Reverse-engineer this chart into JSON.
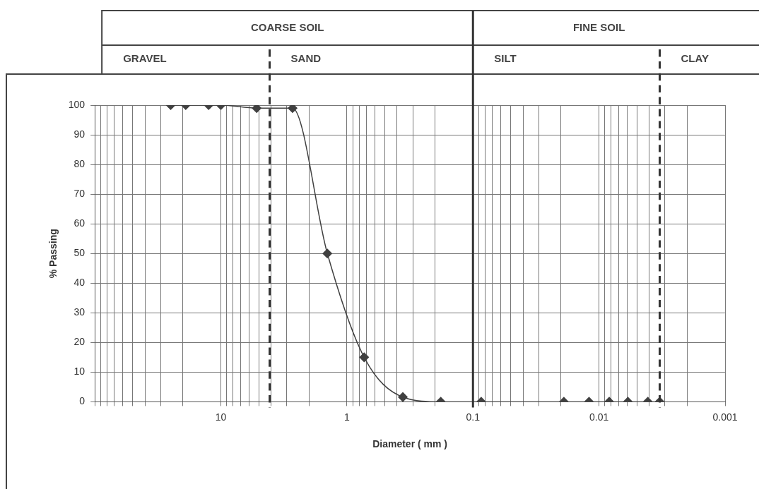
{
  "chart_data": {
    "type": "line",
    "xlabel": "Diameter ( mm )",
    "ylabel": "% Passing",
    "x": [
      25,
      19,
      12.5,
      10,
      5.2,
      2.7,
      1.43,
      0.73,
      0.36,
      0.18,
      0.086,
      0.019,
      0.012,
      0.0083,
      0.0059,
      0.0041,
      0.0033
    ],
    "series": [
      {
        "color": "#404040",
        "values": [
          100,
          100,
          100,
          100,
          99,
          99,
          50,
          15,
          1.6,
          0,
          0,
          0,
          0,
          0,
          0,
          0,
          0
        ]
      }
    ],
    "log": "x",
    "xlim": [
      100,
      0.001
    ],
    "xticks": [
      {
        "value": 100,
        "label": null
      },
      {
        "value": 90,
        "label": null
      },
      {
        "value": 80,
        "label": null
      },
      {
        "value": 70,
        "label": null
      },
      {
        "value": 60,
        "label": null
      },
      {
        "value": 50,
        "label": null
      },
      {
        "value": 40,
        "label": null
      },
      {
        "value": 30,
        "label": null
      },
      {
        "value": 20,
        "label": null
      },
      10,
      {
        "value": 9,
        "label": null
      },
      {
        "value": 8,
        "label": null
      },
      {
        "value": 7,
        "label": null
      },
      {
        "value": 6,
        "label": null
      },
      {
        "value": 5,
        "label": null
      },
      {
        "value": 4,
        "label": null
      },
      {
        "value": 3,
        "label": null
      },
      {
        "value": 2,
        "label": null
      },
      1,
      {
        "value": 0.9,
        "label": null
      },
      {
        "value": 0.8,
        "label": null
      },
      {
        "value": 0.7,
        "label": null
      },
      {
        "value": 0.6,
        "label": null
      },
      {
        "value": 0.5,
        "label": null
      },
      {
        "value": 0.4,
        "label": null
      },
      {
        "value": 0.3,
        "label": null
      },
      {
        "value": 0.2,
        "label": null
      },
      0.1,
      {
        "value": 0.09,
        "label": null
      },
      {
        "value": 0.08,
        "label": null
      },
      {
        "value": 0.07,
        "label": null
      },
      {
        "value": 0.06,
        "label": null
      },
      {
        "value": 0.05,
        "label": null
      },
      {
        "value": 0.04,
        "label": null
      },
      {
        "value": 0.03,
        "label": null
      },
      {
        "value": 0.02,
        "label": null
      },
      0.01,
      {
        "value": 0.009,
        "label": null
      },
      {
        "value": 0.008,
        "label": null
      },
      {
        "value": 0.007,
        "label": null
      },
      {
        "value": 0.006,
        "label": null
      },
      {
        "value": 0.005,
        "label": null
      },
      {
        "value": 0.004,
        "label": null
      },
      {
        "value": 0.003,
        "label": null
      },
      {
        "value": 0.002,
        "label": null
      },
      0.001
    ],
    "ylim": [
      0,
      100
    ],
    "yticks": [
      0,
      10,
      20,
      30,
      40,
      50,
      60,
      70,
      80,
      90,
      100
    ],
    "grid": true,
    "legend": false,
    "marker": "diamond",
    "line_style": "solid",
    "ref_lines": [
      {
        "axis": "x",
        "value": 4.1,
        "line_style": "dashed",
        "color": "#333333"
      },
      {
        "axis": "x",
        "value": 0.1,
        "line_style": "solid",
        "color": "#333333"
      },
      {
        "axis": "x",
        "value": 0.0033,
        "line_style": "dashed",
        "color": "#333333"
      }
    ],
    "annotations": [
      "COARSE SOIL",
      "FINE SOIL",
      "GRAVEL",
      "SAND",
      "SILT",
      "CLAY"
    ]
  }
}
